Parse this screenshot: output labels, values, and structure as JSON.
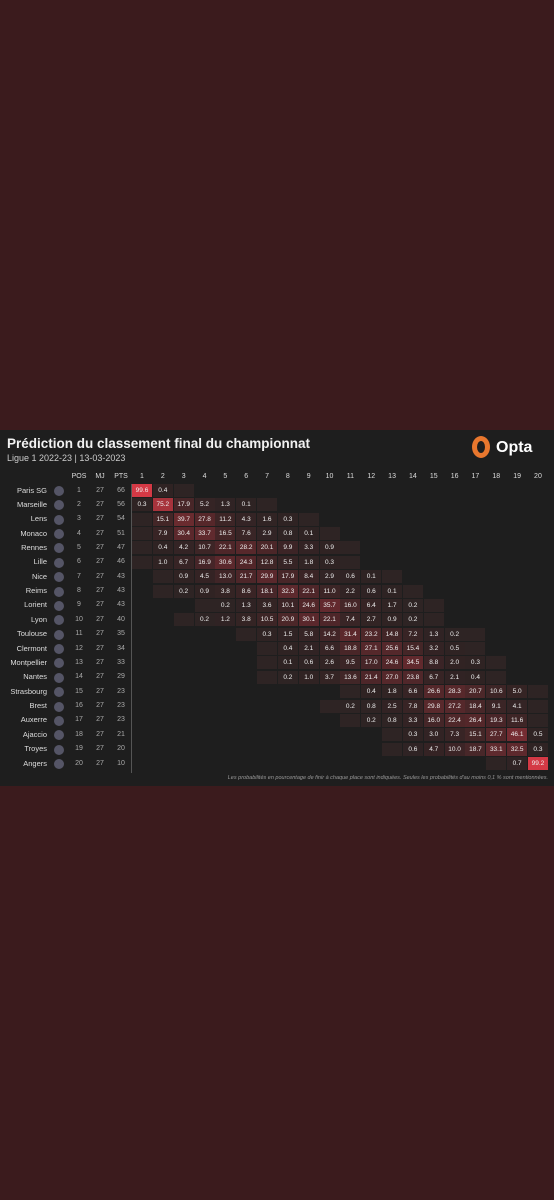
{
  "header": {
    "title": "Prédiction du classement final du championnat",
    "subtitle": "Ligue 1 2022-23 | 13-03-2023",
    "brand": "Opta"
  },
  "table": {
    "columns": [
      "POS",
      "MJ",
      "PTS"
    ],
    "positions": [
      "1",
      "2",
      "3",
      "4",
      "5",
      "6",
      "7",
      "8",
      "9",
      "10",
      "11",
      "12",
      "13",
      "14",
      "15",
      "16",
      "17",
      "18",
      "19",
      "20"
    ],
    "rows": [
      {
        "team": "Paris SG",
        "pos": "1",
        "mj": "27",
        "pts": "66",
        "probs": [
          "99.6",
          "0.4",
          null,
          null,
          null,
          null,
          null,
          null,
          null,
          null,
          null,
          null,
          null,
          null,
          null,
          null,
          null,
          null,
          null,
          null
        ]
      },
      {
        "team": "Marseille",
        "pos": "2",
        "mj": "27",
        "pts": "56",
        "probs": [
          "0.3",
          "75.2",
          "17.9",
          "5.2",
          "1.3",
          "0.1",
          null,
          null,
          null,
          null,
          null,
          null,
          null,
          null,
          null,
          null,
          null,
          null,
          null,
          null
        ]
      },
      {
        "team": "Lens",
        "pos": "3",
        "mj": "27",
        "pts": "54",
        "probs": [
          null,
          "15.1",
          "39.7",
          "27.8",
          "11.2",
          "4.3",
          "1.6",
          "0.3",
          null,
          null,
          null,
          null,
          null,
          null,
          null,
          null,
          null,
          null,
          null,
          null
        ]
      },
      {
        "team": "Monaco",
        "pos": "4",
        "mj": "27",
        "pts": "51",
        "probs": [
          null,
          "7.9",
          "30.4",
          "33.7",
          "16.5",
          "7.6",
          "2.9",
          "0.8",
          "0.1",
          null,
          null,
          null,
          null,
          null,
          null,
          null,
          null,
          null,
          null,
          null
        ]
      },
      {
        "team": "Rennes",
        "pos": "5",
        "mj": "27",
        "pts": "47",
        "probs": [
          null,
          "0.4",
          "4.2",
          "10.7",
          "22.1",
          "28.2",
          "20.1",
          "9.9",
          "3.3",
          "0.9",
          null,
          null,
          null,
          null,
          null,
          null,
          null,
          null,
          null,
          null
        ]
      },
      {
        "team": "Lille",
        "pos": "6",
        "mj": "27",
        "pts": "46",
        "probs": [
          null,
          "1.0",
          "6.7",
          "16.9",
          "30.6",
          "24.3",
          "12.8",
          "5.5",
          "1.8",
          "0.3",
          null,
          null,
          null,
          null,
          null,
          null,
          null,
          null,
          null,
          null
        ]
      },
      {
        "team": "Nice",
        "pos": "7",
        "mj": "27",
        "pts": "43",
        "probs": [
          null,
          null,
          "0.9",
          "4.5",
          "13.0",
          "21.7",
          "29.9",
          "17.9",
          "8.4",
          "2.9",
          "0.6",
          "0.1",
          null,
          null,
          null,
          null,
          null,
          null,
          null,
          null
        ]
      },
      {
        "team": "Reims",
        "pos": "8",
        "mj": "27",
        "pts": "43",
        "probs": [
          null,
          null,
          "0.2",
          "0.9",
          "3.8",
          "8.6",
          "18.1",
          "32.3",
          "22.1",
          "11.0",
          "2.2",
          "0.6",
          "0.1",
          null,
          null,
          null,
          null,
          null,
          null,
          null
        ]
      },
      {
        "team": "Lorient",
        "pos": "9",
        "mj": "27",
        "pts": "43",
        "probs": [
          null,
          null,
          null,
          null,
          "0.2",
          "1.3",
          "3.6",
          "10.1",
          "24.6",
          "35.7",
          "16.0",
          "6.4",
          "1.7",
          "0.2",
          null,
          null,
          null,
          null,
          null,
          null
        ]
      },
      {
        "team": "Lyon",
        "pos": "10",
        "mj": "27",
        "pts": "40",
        "probs": [
          null,
          null,
          null,
          "0.2",
          "1.2",
          "3.8",
          "10.5",
          "20.9",
          "30.1",
          "22.1",
          "7.4",
          "2.7",
          "0.9",
          "0.2",
          null,
          null,
          null,
          null,
          null,
          null
        ]
      },
      {
        "team": "Toulouse",
        "pos": "11",
        "mj": "27",
        "pts": "35",
        "probs": [
          null,
          null,
          null,
          null,
          null,
          null,
          "0.3",
          "1.5",
          "5.8",
          "14.2",
          "31.4",
          "23.2",
          "14.8",
          "7.2",
          "1.3",
          "0.2",
          null,
          null,
          null,
          null
        ]
      },
      {
        "team": "Clermont",
        "pos": "12",
        "mj": "27",
        "pts": "34",
        "probs": [
          null,
          null,
          null,
          null,
          null,
          null,
          null,
          "0.4",
          "2.1",
          "6.6",
          "18.8",
          "27.1",
          "25.6",
          "15.4",
          "3.2",
          "0.5",
          null,
          null,
          null,
          null
        ]
      },
      {
        "team": "Montpellier",
        "pos": "13",
        "mj": "27",
        "pts": "33",
        "probs": [
          null,
          null,
          null,
          null,
          null,
          null,
          null,
          "0.1",
          "0.6",
          "2.6",
          "9.5",
          "17.0",
          "24.6",
          "34.5",
          "8.8",
          "2.0",
          "0.3",
          null,
          null,
          null
        ]
      },
      {
        "team": "Nantes",
        "pos": "14",
        "mj": "27",
        "pts": "29",
        "probs": [
          null,
          null,
          null,
          null,
          null,
          null,
          null,
          "0.2",
          "1.0",
          "3.7",
          "13.6",
          "21.4",
          "27.0",
          "23.8",
          "6.7",
          "2.1",
          "0.4",
          null,
          null,
          null
        ]
      },
      {
        "team": "Strasbourg",
        "pos": "15",
        "mj": "27",
        "pts": "23",
        "probs": [
          null,
          null,
          null,
          null,
          null,
          null,
          null,
          null,
          null,
          null,
          null,
          "0.4",
          "1.8",
          "6.6",
          "26.6",
          "28.3",
          "20.7",
          "10.6",
          "5.0",
          null
        ]
      },
      {
        "team": "Brest",
        "pos": "16",
        "mj": "27",
        "pts": "23",
        "probs": [
          null,
          null,
          null,
          null,
          null,
          null,
          null,
          null,
          null,
          null,
          "0.2",
          "0.8",
          "2.5",
          "7.8",
          "29.8",
          "27.2",
          "18.4",
          "9.1",
          "4.1",
          null
        ]
      },
      {
        "team": "Auxerre",
        "pos": "17",
        "mj": "27",
        "pts": "23",
        "probs": [
          null,
          null,
          null,
          null,
          null,
          null,
          null,
          null,
          null,
          null,
          null,
          "0.2",
          "0.8",
          "3.3",
          "16.0",
          "22.4",
          "26.4",
          "19.3",
          "11.6",
          null
        ]
      },
      {
        "team": "Ajaccio",
        "pos": "18",
        "mj": "27",
        "pts": "21",
        "probs": [
          null,
          null,
          null,
          null,
          null,
          null,
          null,
          null,
          null,
          null,
          null,
          null,
          null,
          "0.3",
          "3.0",
          "7.3",
          "15.1",
          "27.7",
          "46.1",
          "0.5"
        ]
      },
      {
        "team": "Troyes",
        "pos": "19",
        "mj": "27",
        "pts": "20",
        "probs": [
          null,
          null,
          null,
          null,
          null,
          null,
          null,
          null,
          null,
          null,
          null,
          null,
          null,
          "0.6",
          "4.7",
          "10.0",
          "18.7",
          "33.1",
          "32.5",
          "0.3"
        ]
      },
      {
        "team": "Angers",
        "pos": "20",
        "mj": "27",
        "pts": "10",
        "probs": [
          null,
          null,
          null,
          null,
          null,
          null,
          null,
          null,
          null,
          null,
          null,
          null,
          null,
          null,
          null,
          null,
          null,
          null,
          "0.7",
          "99.2"
        ]
      }
    ]
  },
  "footnote": "Les probabilités en pourcentage de finir à chaque place sont indiquées. Seules les probabilités d'au moins 0,1 % sont mentionnées."
}
